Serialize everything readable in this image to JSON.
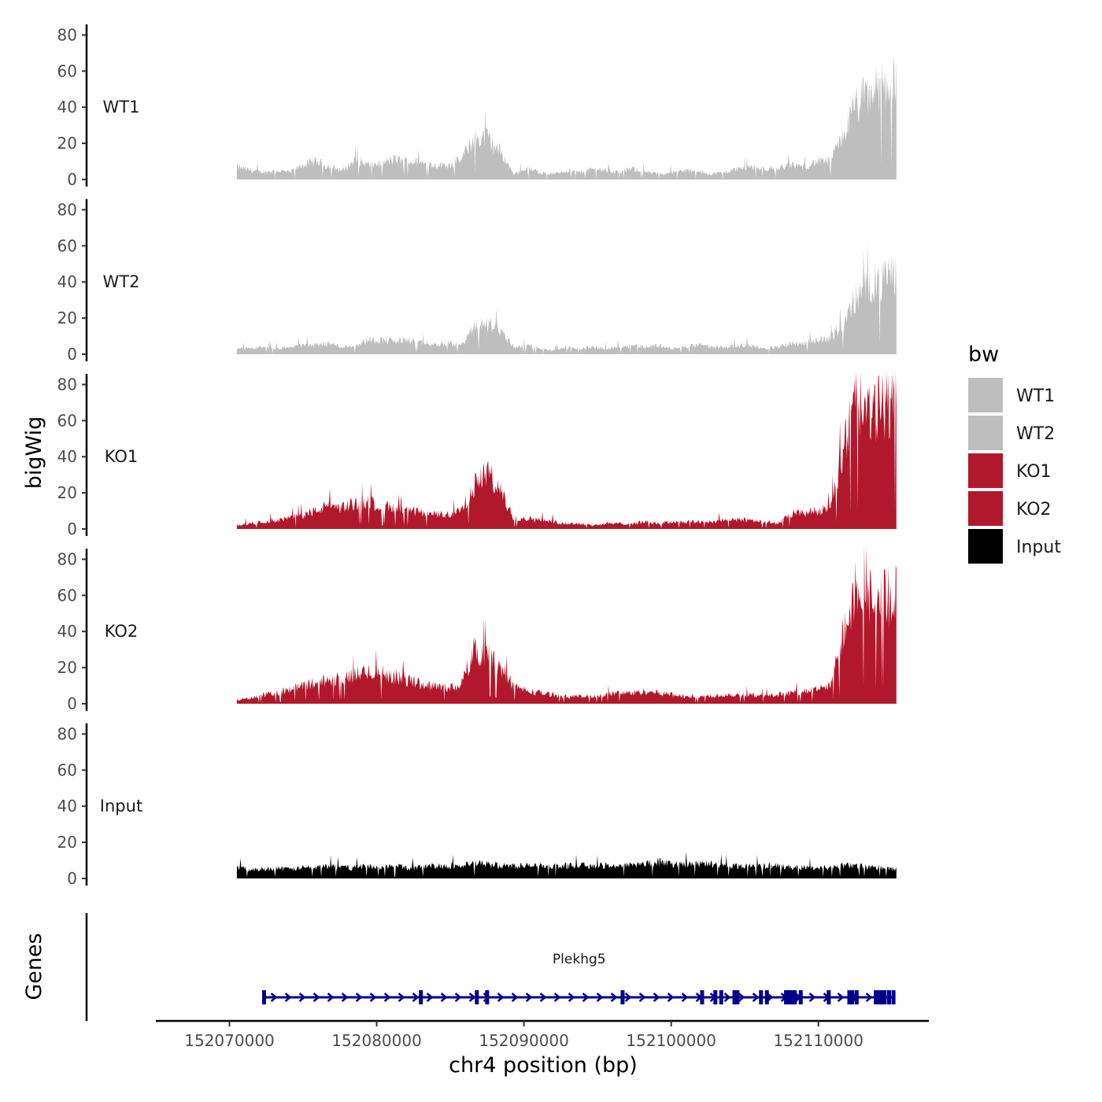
{
  "chart_data": {
    "type": "area",
    "y_axis_title": "bigWig",
    "genes_axis_title": "Genes",
    "x_axis_title": "chr4 position (bp)",
    "xlim": [
      152065000,
      152117500
    ],
    "x_ticks": [
      152070000,
      152080000,
      152090000,
      152100000,
      152110000
    ],
    "x_tick_labels": [
      "152070000",
      "152080000",
      "152090000",
      "152100000",
      "152110000"
    ],
    "ylim": [
      0,
      85
    ],
    "y_ticks": [
      0,
      20,
      40,
      60,
      80
    ],
    "y_tick_labels": [
      "0",
      "20",
      "40",
      "60",
      "80"
    ],
    "x_start": 152070500,
    "x_end": 152115300,
    "tracks": [
      {
        "name": "WT1",
        "color": "#bebebe",
        "step": 1000,
        "values": [
          7,
          5,
          4,
          5,
          4,
          8,
          10,
          7,
          5,
          11,
          8,
          9,
          11,
          10,
          9,
          8,
          8,
          11,
          23,
          23,
          15,
          3,
          6,
          4,
          3,
          5,
          4,
          6,
          5,
          4,
          6,
          4,
          3,
          4,
          5,
          4,
          3,
          4,
          6,
          7,
          6,
          6,
          8,
          7,
          10,
          10,
          25,
          42,
          47,
          52,
          55
        ]
      },
      {
        "name": "WT2",
        "color": "#bebebe",
        "step": 1000,
        "values": [
          3,
          3,
          4,
          3,
          4,
          5,
          5,
          6,
          4,
          5,
          8,
          8,
          7,
          8,
          6,
          5,
          6,
          5,
          15,
          17,
          13,
          4,
          5,
          3,
          2,
          4,
          3,
          4,
          3,
          4,
          5,
          4,
          5,
          3,
          4,
          5,
          4,
          4,
          5,
          5,
          3,
          4,
          6,
          6,
          8,
          9,
          17,
          32,
          38,
          40,
          46
        ]
      },
      {
        "name": "KO1",
        "color": "#b2182b",
        "step": 1000,
        "values": [
          2,
          3,
          4,
          5,
          6,
          8,
          10,
          13,
          12,
          14,
          15,
          13,
          11,
          10,
          9,
          8,
          8,
          10,
          24,
          32,
          20,
          6,
          6,
          5,
          4,
          3,
          3,
          2,
          3,
          3,
          3,
          4,
          3,
          4,
          4,
          4,
          4,
          5,
          5,
          5,
          4,
          3,
          8,
          9,
          10,
          12,
          45,
          72,
          62,
          68,
          75
        ]
      },
      {
        "name": "KO2",
        "color": "#b2182b",
        "step": 1000,
        "values": [
          2,
          3,
          5,
          6,
          8,
          10,
          12,
          13,
          14,
          16,
          18,
          17,
          15,
          13,
          11,
          10,
          9,
          10,
          30,
          28,
          20,
          10,
          7,
          6,
          5,
          4,
          4,
          4,
          5,
          6,
          6,
          7,
          6,
          5,
          4,
          4,
          4,
          5,
          5,
          5,
          4,
          5,
          6,
          7,
          8,
          10,
          40,
          70,
          60,
          58,
          60
        ]
      },
      {
        "name": "Input",
        "color": "#000000",
        "step": 1000,
        "values": [
          6,
          5,
          5,
          6,
          5,
          6,
          6,
          7,
          6,
          6,
          7,
          6,
          7,
          6,
          6,
          7,
          7,
          7,
          8,
          8,
          7,
          7,
          7,
          7,
          7,
          7,
          7,
          7,
          7,
          7,
          8,
          8,
          9,
          8,
          8,
          8,
          8,
          7,
          7,
          7,
          7,
          7,
          6,
          6,
          6,
          6,
          7,
          7,
          6,
          6,
          5
        ]
      }
    ],
    "legend": {
      "title": "bw",
      "entries": [
        {
          "label": "WT1",
          "color": "#bebebe"
        },
        {
          "label": "WT2",
          "color": "#bebebe"
        },
        {
          "label": "KO1",
          "color": "#b2182b"
        },
        {
          "label": "KO2",
          "color": "#b2182b"
        },
        {
          "label": "Input",
          "color": "#000000"
        }
      ]
    },
    "gene": {
      "name": "Plekhg5",
      "color": "#00008b",
      "start": 152072300,
      "end": 152115200,
      "strand": "+",
      "exons": [
        152072350,
        152083000,
        152086800,
        152087500,
        152096700,
        152102100,
        152103000,
        152103400,
        152104300,
        152104500,
        152106100,
        152106500,
        152107800,
        152108000,
        152108200,
        152108400,
        152108800,
        152110700,
        152112100,
        152112300,
        152112600,
        152113900,
        152114100,
        152114300,
        152114500,
        152114800,
        152115100
      ]
    }
  }
}
